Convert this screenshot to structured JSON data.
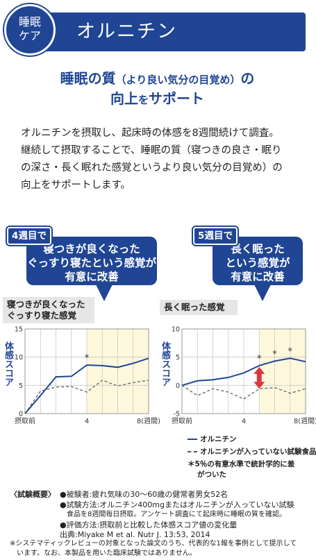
{
  "header": {
    "badge_line1": "睡眠",
    "badge_line2": "ケア",
    "title": "オルニチン"
  },
  "headline": {
    "line1a": "睡眠の質",
    "line1b": "（より良い気分の目覚め）",
    "line1c": "の",
    "line2a": "向上",
    "line2b": "を",
    "line2c": "サポート"
  },
  "intro": [
    "オルニチンを摂取し、起床時の体感を8週間続けて調査。",
    "継続して摂取することで、睡眠の質（寝つきの良さ・眠り",
    "の深さ・長く眠れた感覚というより良い気分の目覚め）の",
    "向上をサポートします。"
  ],
  "callouts": [
    {
      "tag": "4週目で",
      "line1": "寝つきが良くなった",
      "line2": "ぐっすり寝たという感覚が",
      "line3": "有意に改善"
    },
    {
      "tag": "5週目で",
      "line1": "長く眠った",
      "line2": "という感覚が",
      "line3": "有意に改善"
    }
  ],
  "chart_labels": [
    {
      "line1": "寝つきが良くなった",
      "line2": "ぐっすり寝た感覚"
    },
    {
      "line1": "長く眠った感覚",
      "line2": ""
    }
  ],
  "ylabel": "体感スコア",
  "colors": {
    "brand": "#1f4594",
    "highlight": "#fdf8dc",
    "arrow": "#d9383e",
    "placebo": "#555555"
  },
  "chart_data": [
    {
      "type": "line",
      "x": [
        0,
        1,
        2,
        3,
        4,
        5,
        6,
        7,
        8
      ],
      "x_ticks": [
        "摂取前",
        "4",
        "8(週間)"
      ],
      "x_tick_positions": [
        0,
        4,
        8
      ],
      "ylim": [
        0,
        15
      ],
      "y_ticks": [
        0,
        5,
        10,
        15
      ],
      "grid": true,
      "highlight_from_week": 4,
      "series": [
        {
          "name": "オルニチン",
          "style": "solid",
          "values": [
            0,
            3.2,
            6.5,
            6.6,
            8.6,
            8.5,
            8.2,
            8.9,
            9.8
          ]
        },
        {
          "name": "オルニチンが入っていない試験食品",
          "style": "dashed",
          "values": [
            0,
            4.0,
            4.7,
            4.8,
            3.8,
            5.9,
            4.9,
            5.5,
            5.9
          ]
        }
      ],
      "significant_weeks": [
        4
      ],
      "significance_mark": "*"
    },
    {
      "type": "line",
      "x": [
        0,
        1,
        2,
        3,
        4,
        5,
        6,
        7,
        8
      ],
      "x_ticks": [
        "摂取前",
        "4",
        "8(週間)"
      ],
      "x_tick_positions": [
        0,
        4,
        8
      ],
      "ylim": [
        -5,
        10
      ],
      "y_ticks": [
        -5,
        0,
        5,
        10
      ],
      "grid": true,
      "highlight_from_week": 5,
      "series": [
        {
          "name": "オルニチン",
          "style": "solid",
          "values": [
            0,
            0.8,
            1.0,
            1.4,
            2.2,
            3.5,
            4.3,
            4.8,
            4.2
          ]
        },
        {
          "name": "オルニチンが入っていない試験食品",
          "style": "dashed",
          "values": [
            0,
            -1.8,
            -0.6,
            -1.2,
            -2.4,
            -0.6,
            -0.4,
            -1.4,
            -0.6
          ]
        }
      ],
      "significant_weeks": [
        5,
        6,
        7
      ],
      "significance_mark": "*",
      "difference_arrow_week": 5
    }
  ],
  "legend": {
    "solid": "オルニチン",
    "dashed": "オルニチンが入っていない試験食品",
    "note_line1": "＊5％の有意水準で統計学的に差",
    "note_line2": "がついた"
  },
  "summary": {
    "heading": "〈試験概要〉",
    "lines": [
      "●被験者:疲れ気味の30～60歳の健常者男女52名",
      "●試験方法:オルニチン400mgまたはオルニチンが入っていない試験",
      "　食品を8週間毎日摂取。アンケート調査にて起床時に睡眠の質を確認。",
      "●評価方法:摂取前と比較した体感スコア値の変化量",
      "出典:Miyake M et al. Nutr J. 13:53, 2014"
    ]
  },
  "footnote": [
    "※システマティックレビューの対象となった論文のうち、代表的な1報を事例として提示して",
    "　います。なお、本製品を用いた臨床試験ではありません。"
  ]
}
